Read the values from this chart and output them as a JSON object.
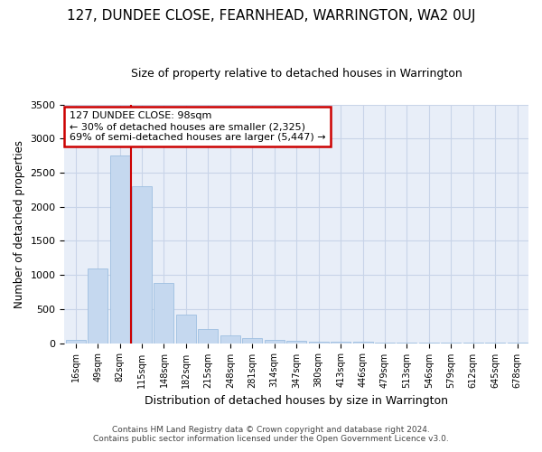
{
  "title": "127, DUNDEE CLOSE, FEARNHEAD, WARRINGTON, WA2 0UJ",
  "subtitle": "Size of property relative to detached houses in Warrington",
  "xlabel": "Distribution of detached houses by size in Warrington",
  "ylabel": "Number of detached properties",
  "categories": [
    "16sqm",
    "49sqm",
    "82sqm",
    "115sqm",
    "148sqm",
    "182sqm",
    "215sqm",
    "248sqm",
    "281sqm",
    "314sqm",
    "347sqm",
    "380sqm",
    "413sqm",
    "446sqm",
    "479sqm",
    "513sqm",
    "546sqm",
    "579sqm",
    "612sqm",
    "645sqm",
    "678sqm"
  ],
  "values": [
    50,
    1100,
    2750,
    2300,
    880,
    420,
    200,
    110,
    80,
    50,
    35,
    25,
    20,
    15,
    12,
    8,
    5,
    3,
    2,
    1,
    1
  ],
  "bar_color": "#c5d8ef",
  "bar_edge_color": "#9dbfe0",
  "vline_x_index": 2,
  "vline_color": "#cc0000",
  "annotation_title": "127 DUNDEE CLOSE: 98sqm",
  "annotation_line1": "← 30% of detached houses are smaller (2,325)",
  "annotation_line2": "69% of semi-detached houses are larger (5,447) →",
  "annotation_box_color": "#cc0000",
  "annotation_bg": "#ffffff",
  "ylim": [
    0,
    3500
  ],
  "yticks": [
    0,
    500,
    1000,
    1500,
    2000,
    2500,
    3000,
    3500
  ],
  "footer1": "Contains HM Land Registry data © Crown copyright and database right 2024.",
  "footer2": "Contains public sector information licensed under the Open Government Licence v3.0.",
  "bg_color": "#ffffff",
  "plot_bg_color": "#e8eef8",
  "grid_color": "#c8d4e8",
  "title_fontsize": 11,
  "subtitle_fontsize": 9,
  "title_fontweight": "normal"
}
